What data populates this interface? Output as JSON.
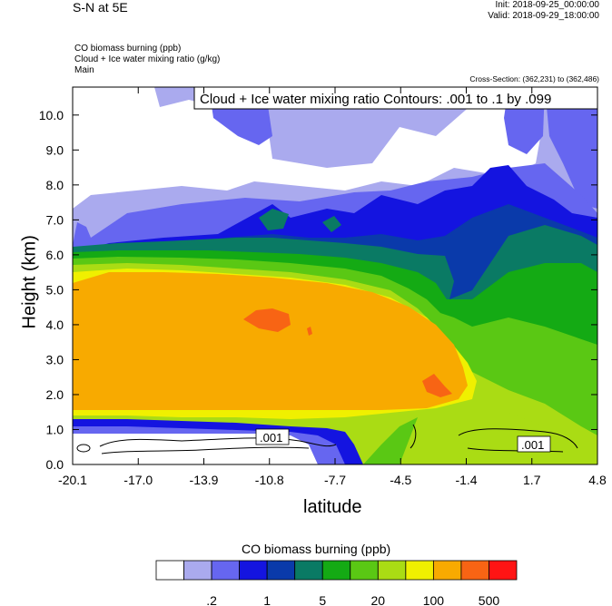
{
  "header": {
    "title": "S-N at 5E",
    "init": "Init: 2018-09-25_00:00:00",
    "valid": "Valid: 2018-09-29_18:00:00",
    "var1": "CO biomass burning   (ppb)",
    "var2": "Cloud + Ice water mixing ratio   (g/kg)",
    "var3": "Main",
    "cross_section": "Cross-Section: (362,231) to (362,486)"
  },
  "chart_data": {
    "type": "heatmap",
    "title": "S-N at 5E",
    "xlabel": "latitude",
    "ylabel": "Height (km)",
    "xlim": [
      -20.1,
      4.8
    ],
    "ylim": [
      0.0,
      10.8
    ],
    "x_ticks": [
      "-20.1",
      "-17.0",
      "-13.9",
      "-10.8",
      "-7.7",
      "-4.5",
      "-1.4",
      "1.7",
      "4.8"
    ],
    "y_ticks": [
      "0.0",
      "1.0",
      "2.0",
      "3.0",
      "4.0",
      "5.0",
      "6.0",
      "7.0",
      "8.0",
      "9.0",
      "10.0"
    ],
    "contour_info": "Cloud + Ice water mixing ratio Contours: .001 to .1 by .099",
    "contour_labels": [
      ".001",
      ".001"
    ],
    "colorbar": {
      "title": "CO biomass burning  (ppb)",
      "colors": [
        "#ffffff",
        "#aaaaee",
        "#6666f0",
        "#1414e0",
        "#0a3aaa",
        "#0a7a64",
        "#14aa14",
        "#5ac814",
        "#aadc14",
        "#f0f000",
        "#f8aa00",
        "#f86414",
        "#ff1414"
      ],
      "labels": [
        ".2",
        "1",
        "5",
        "20",
        "100",
        "500"
      ]
    },
    "fields": {
      "upper_cloud_band_blue": {
        "x": [
          -19.5,
          4.8
        ],
        "z": [
          6.2,
          10.8
        ]
      },
      "main_plume_orange": {
        "x": [
          -20.1,
          -2.5
        ],
        "z": [
          1.7,
          5.4
        ],
        "value_ppb": "100-500"
      },
      "core_red_orange": {
        "x": [
          -11.5,
          -10.0
        ],
        "z": [
          3.9,
          4.3
        ]
      },
      "surface_green": {
        "x": [
          -5.0,
          4.8
        ],
        "z": [
          0.0,
          2.0
        ]
      }
    }
  }
}
